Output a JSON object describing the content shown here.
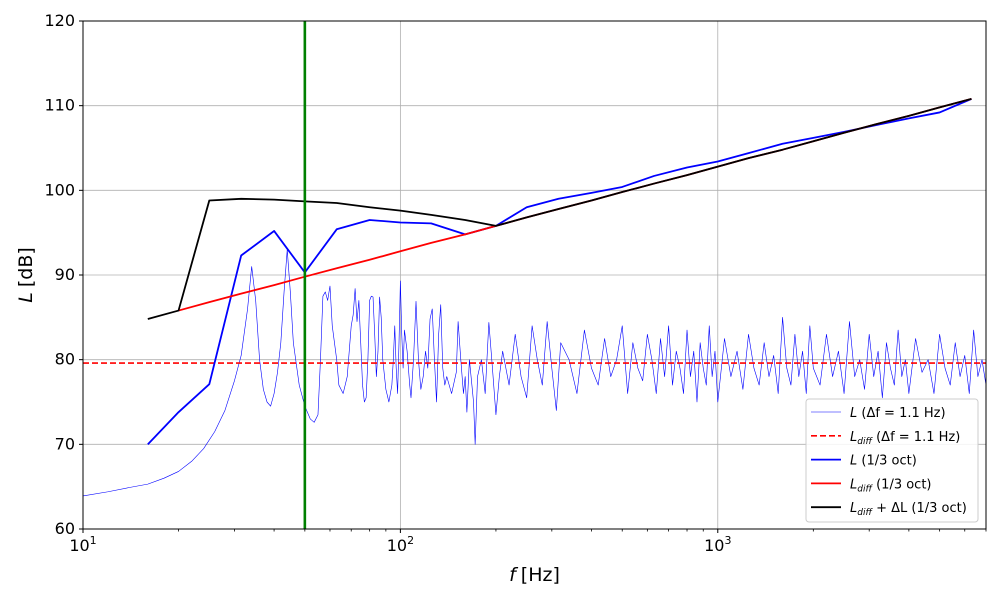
{
  "chart_data": {
    "type": "line",
    "title": "",
    "xlabel_symbol": "f",
    "xlabel_unit": "[Hz]",
    "ylabel_symbol": "L",
    "ylabel_unit": "[dB]",
    "xscale": "log",
    "xlim": [
      10,
      7000
    ],
    "ylim": [
      60,
      120
    ],
    "grid": true,
    "legend_position": "lower-right",
    "x_tick_labels": [
      {
        "value": 10,
        "base": "10",
        "exp": "1"
      },
      {
        "value": 100,
        "base": "10",
        "exp": "2"
      },
      {
        "value": 1000,
        "base": "10",
        "exp": "3"
      }
    ],
    "y_ticks": [
      60,
      70,
      80,
      90,
      100,
      110,
      120
    ],
    "vertical_line": {
      "x": 50,
      "color": "#008000"
    },
    "series": [
      {
        "key": "L_narrow",
        "legend_main": "L",
        "legend_sub": "",
        "legend_suffix": " (Δf = 1.1 Hz)",
        "color": "#0000ff",
        "style": "thin-solid",
        "points": [
          [
            10,
            63.9
          ],
          [
            12,
            64.4
          ],
          [
            14,
            64.9
          ],
          [
            16,
            65.3
          ],
          [
            18,
            66.0
          ],
          [
            20,
            66.8
          ],
          [
            22,
            68.0
          ],
          [
            24,
            69.5
          ],
          [
            26,
            71.5
          ],
          [
            28,
            74.0
          ],
          [
            30,
            77.5
          ],
          [
            31.5,
            80.5
          ],
          [
            33,
            86.0
          ],
          [
            34,
            91.0
          ],
          [
            35,
            87.0
          ],
          [
            36,
            80.0
          ],
          [
            37,
            76.5
          ],
          [
            38,
            75.0
          ],
          [
            39,
            74.5
          ],
          [
            40,
            76.0
          ],
          [
            41,
            78.5
          ],
          [
            42,
            82.0
          ],
          [
            43,
            88.0
          ],
          [
            44,
            93.0
          ],
          [
            45,
            88.0
          ],
          [
            46,
            82.0
          ],
          [
            48,
            77.0
          ],
          [
            50,
            74.5
          ],
          [
            52,
            73.0
          ],
          [
            53.5,
            72.6
          ],
          [
            55,
            73.5
          ],
          [
            56,
            80.0
          ],
          [
            57,
            87.5
          ],
          [
            58,
            88.0
          ],
          [
            59,
            87.0
          ],
          [
            60,
            88.7
          ],
          [
            61,
            84.0
          ],
          [
            63,
            80.0
          ],
          [
            64,
            77.0
          ],
          [
            66,
            76.0
          ],
          [
            68,
            78.0
          ],
          [
            70,
            84.0
          ],
          [
            71,
            85.3
          ],
          [
            72,
            88.4
          ],
          [
            73,
            84.5
          ],
          [
            74,
            87.0
          ],
          [
            75,
            82.0
          ],
          [
            76,
            77.0
          ],
          [
            77,
            75.0
          ],
          [
            78,
            75.5
          ],
          [
            79,
            80.0
          ],
          [
            80,
            87.0
          ],
          [
            81,
            87.5
          ],
          [
            82,
            87.4
          ],
          [
            83,
            83.0
          ],
          [
            84,
            78.0
          ],
          [
            85,
            81.0
          ],
          [
            86,
            87.4
          ],
          [
            87,
            85.0
          ],
          [
            88,
            80.0
          ],
          [
            90,
            76.5
          ],
          [
            92,
            75.0
          ],
          [
            94,
            77.0
          ],
          [
            95,
            80.0
          ],
          [
            96,
            84.0
          ],
          [
            97,
            79.0
          ],
          [
            98,
            76.0
          ],
          [
            99,
            82.0
          ],
          [
            100,
            89.3
          ],
          [
            101,
            83.0
          ],
          [
            102,
            79.0
          ],
          [
            103,
            83.5
          ],
          [
            105,
            81.0
          ],
          [
            107,
            77.0
          ],
          [
            108,
            75.5
          ],
          [
            110,
            80.0
          ],
          [
            112,
            86.9
          ],
          [
            114,
            80.0
          ],
          [
            116,
            76.5
          ],
          [
            118,
            78.0
          ],
          [
            120,
            81.0
          ],
          [
            122,
            79.0
          ],
          [
            124,
            84.8
          ],
          [
            126,
            86.0
          ],
          [
            128,
            80.0
          ],
          [
            130,
            75.0
          ],
          [
            132,
            83.0
          ],
          [
            134,
            86.5
          ],
          [
            136,
            79.0
          ],
          [
            138,
            77.0
          ],
          [
            140,
            78.0
          ],
          [
            145,
            76.0
          ],
          [
            150,
            78.5
          ],
          [
            152,
            84.5
          ],
          [
            155,
            80.0
          ],
          [
            158,
            76.0
          ],
          [
            160,
            78.0
          ],
          [
            162,
            73.8
          ],
          [
            165,
            80.0
          ],
          [
            168,
            77.0
          ],
          [
            170,
            75.0
          ],
          [
            172,
            70.0
          ],
          [
            175,
            78.0
          ],
          [
            180,
            80.0
          ],
          [
            185,
            76.0
          ],
          [
            190,
            84.4
          ],
          [
            195,
            79.0
          ],
          [
            200,
            73.5
          ],
          [
            205,
            78.0
          ],
          [
            210,
            81.0
          ],
          [
            220,
            77.0
          ],
          [
            230,
            83.0
          ],
          [
            240,
            78.0
          ],
          [
            250,
            75.5
          ],
          [
            260,
            84.0
          ],
          [
            270,
            80.0
          ],
          [
            280,
            77.0
          ],
          [
            290,
            84.5
          ],
          [
            300,
            79.0
          ],
          [
            310,
            74.0
          ],
          [
            320,
            82.0
          ],
          [
            340,
            80.0
          ],
          [
            360,
            76.0
          ],
          [
            380,
            83.5
          ],
          [
            400,
            79.0
          ],
          [
            420,
            77.0
          ],
          [
            440,
            82.5
          ],
          [
            460,
            78.0
          ],
          [
            480,
            80.0
          ],
          [
            500,
            84.0
          ],
          [
            520,
            76.0
          ],
          [
            540,
            82.0
          ],
          [
            560,
            79.0
          ],
          [
            580,
            77.5
          ],
          [
            600,
            83.0
          ],
          [
            620,
            80.0
          ],
          [
            640,
            76.0
          ],
          [
            660,
            82.5
          ],
          [
            680,
            78.0
          ],
          [
            700,
            84.0
          ],
          [
            720,
            77.0
          ],
          [
            740,
            81.0
          ],
          [
            760,
            79.0
          ],
          [
            780,
            76.0
          ],
          [
            800,
            83.5
          ],
          [
            820,
            78.0
          ],
          [
            840,
            81.0
          ],
          [
            860,
            75.0
          ],
          [
            880,
            82.0
          ],
          [
            900,
            79.0
          ],
          [
            920,
            77.0
          ],
          [
            940,
            84.0
          ],
          [
            960,
            78.0
          ],
          [
            980,
            81.0
          ],
          [
            1000,
            75.0
          ],
          [
            1050,
            82.5
          ],
          [
            1100,
            78.0
          ],
          [
            1150,
            81.0
          ],
          [
            1200,
            76.5
          ],
          [
            1250,
            83.0
          ],
          [
            1300,
            79.0
          ],
          [
            1350,
            77.0
          ],
          [
            1400,
            82.0
          ],
          [
            1450,
            78.0
          ],
          [
            1500,
            80.5
          ],
          [
            1550,
            76.0
          ],
          [
            1600,
            85.0
          ],
          [
            1650,
            79.0
          ],
          [
            1700,
            77.0
          ],
          [
            1750,
            83.0
          ],
          [
            1800,
            78.0
          ],
          [
            1850,
            81.0
          ],
          [
            1900,
            76.0
          ],
          [
            1950,
            84.0
          ],
          [
            2000,
            79.0
          ],
          [
            2100,
            77.0
          ],
          [
            2200,
            83.0
          ],
          [
            2300,
            78.0
          ],
          [
            2400,
            81.0
          ],
          [
            2500,
            76.0
          ],
          [
            2600,
            84.5
          ],
          [
            2700,
            78.0
          ],
          [
            2800,
            80.0
          ],
          [
            2900,
            76.5
          ],
          [
            3000,
            83.0
          ],
          [
            3100,
            78.0
          ],
          [
            3200,
            81.0
          ],
          [
            3300,
            75.5
          ],
          [
            3400,
            82.0
          ],
          [
            3500,
            79.0
          ],
          [
            3600,
            77.0
          ],
          [
            3700,
            83.5
          ],
          [
            3800,
            78.0
          ],
          [
            3900,
            80.0
          ],
          [
            4000,
            76.0
          ],
          [
            4200,
            82.5
          ],
          [
            4400,
            78.5
          ],
          [
            4600,
            80.0
          ],
          [
            4800,
            76.0
          ],
          [
            5000,
            83.0
          ],
          [
            5200,
            79.0
          ],
          [
            5400,
            77.0
          ],
          [
            5600,
            82.0
          ],
          [
            5800,
            78.0
          ],
          [
            6000,
            80.5
          ],
          [
            6200,
            76.0
          ],
          [
            6400,
            83.5
          ],
          [
            6600,
            78.0
          ],
          [
            6800,
            80.0
          ],
          [
            7000,
            77.0
          ]
        ]
      },
      {
        "key": "Ldiff_narrow",
        "legend_main": "L",
        "legend_sub": "diff",
        "legend_suffix": " (Δf = 1.1 Hz)",
        "color": "#ff0000",
        "style": "dashed",
        "points": [
          [
            10,
            79.6
          ],
          [
            7000,
            79.6
          ]
        ]
      },
      {
        "key": "L_third_oct",
        "legend_main": "L",
        "legend_sub": "",
        "legend_suffix": " (1/3 oct)",
        "color": "#0000ff",
        "style": "solid",
        "points": [
          [
            16,
            70.0
          ],
          [
            20,
            73.8
          ],
          [
            25,
            77.1
          ],
          [
            31.5,
            92.3
          ],
          [
            40,
            95.2
          ],
          [
            50,
            90.3
          ],
          [
            63,
            95.4
          ],
          [
            80,
            96.5
          ],
          [
            100,
            96.2
          ],
          [
            125,
            96.1
          ],
          [
            160,
            94.8
          ],
          [
            200,
            95.8
          ],
          [
            250,
            98.0
          ],
          [
            315,
            99.0
          ],
          [
            400,
            99.7
          ],
          [
            500,
            100.4
          ],
          [
            630,
            101.7
          ],
          [
            800,
            102.7
          ],
          [
            1000,
            103.4
          ],
          [
            1250,
            104.4
          ],
          [
            1600,
            105.5
          ],
          [
            2000,
            106.2
          ],
          [
            2500,
            106.9
          ],
          [
            3150,
            107.7
          ],
          [
            4000,
            108.5
          ],
          [
            5000,
            109.2
          ],
          [
            6300,
            110.8
          ]
        ]
      },
      {
        "key": "Ldiff_third_oct",
        "legend_main": "L",
        "legend_sub": "diff",
        "legend_suffix": " (1/3 oct)",
        "color": "#ff0000",
        "style": "solid",
        "points": [
          [
            20,
            85.8
          ],
          [
            25,
            86.8
          ],
          [
            31.5,
            87.8
          ],
          [
            40,
            88.8
          ],
          [
            50,
            89.8
          ],
          [
            63,
            90.8
          ],
          [
            80,
            91.8
          ],
          [
            100,
            92.8
          ],
          [
            125,
            93.8
          ],
          [
            160,
            94.8
          ],
          [
            200,
            95.8
          ],
          [
            250,
            96.8
          ],
          [
            315,
            97.8
          ],
          [
            400,
            98.8
          ],
          [
            500,
            99.8
          ],
          [
            630,
            100.8
          ],
          [
            800,
            101.8
          ],
          [
            1000,
            102.8
          ],
          [
            1250,
            103.8
          ],
          [
            1600,
            104.8
          ],
          [
            2000,
            105.8
          ],
          [
            2500,
            106.8
          ],
          [
            3150,
            107.8
          ],
          [
            4000,
            108.8
          ],
          [
            5000,
            109.8
          ],
          [
            6300,
            110.8
          ]
        ]
      },
      {
        "key": "Ldiff_plus_dL",
        "legend_main": "L",
        "legend_sub": "diff",
        "legend_suffix": " + ΔL (1/3 oct)",
        "color": "#000000",
        "style": "solid",
        "points": [
          [
            16,
            84.8
          ],
          [
            20,
            85.8
          ],
          [
            25,
            98.8
          ],
          [
            31.5,
            99.0
          ],
          [
            40,
            98.9
          ],
          [
            50,
            98.7
          ],
          [
            63,
            98.5
          ],
          [
            80,
            98.0
          ],
          [
            100,
            97.6
          ],
          [
            125,
            97.1
          ],
          [
            160,
            96.5
          ],
          [
            200,
            95.8
          ],
          [
            250,
            96.8
          ],
          [
            315,
            97.8
          ],
          [
            400,
            98.8
          ],
          [
            500,
            99.8
          ],
          [
            630,
            100.8
          ],
          [
            800,
            101.8
          ],
          [
            1000,
            102.8
          ],
          [
            1250,
            103.8
          ],
          [
            1600,
            104.8
          ],
          [
            2000,
            105.8
          ],
          [
            2500,
            106.8
          ],
          [
            3150,
            107.8
          ],
          [
            4000,
            108.8
          ],
          [
            5000,
            109.8
          ],
          [
            6300,
            110.8
          ]
        ]
      }
    ]
  }
}
